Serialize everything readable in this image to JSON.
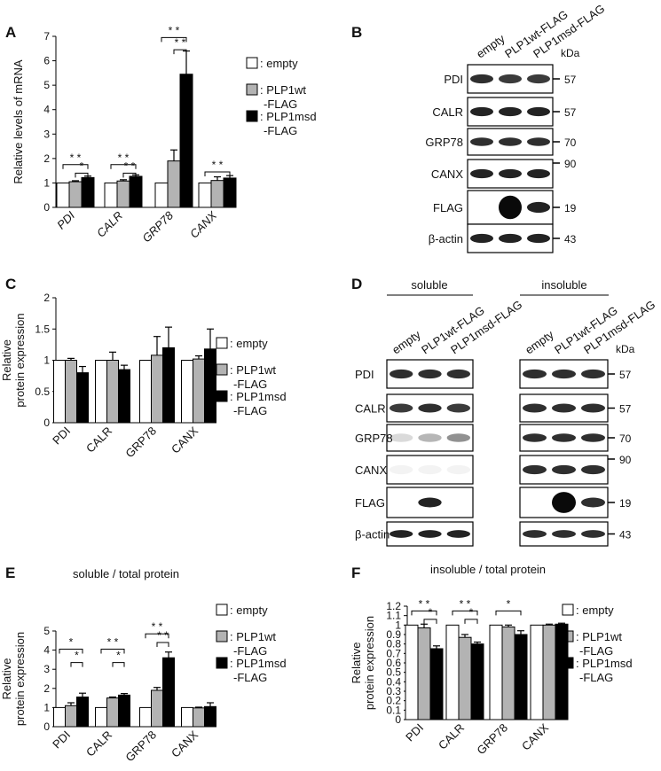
{
  "legend": {
    "empty": ": empty",
    "wt": [
      ": PLP1wt",
      "-FLAG"
    ],
    "msd": [
      ": PLP1msd",
      "-FLAG"
    ]
  },
  "colors": {
    "empty": "#ffffff",
    "wt": "#b3b3b3",
    "msd": "#000000"
  },
  "chart_data": [
    {
      "panel": "A",
      "type": "bar",
      "categories": [
        "PDI",
        "CALR",
        "GRP78",
        "CANX"
      ],
      "italic_categories": true,
      "ylabel": "Relative levels of mRNA",
      "ylim": [
        0,
        7
      ],
      "yticks": [
        "0",
        "1",
        "2",
        "3",
        "4",
        "5",
        "6",
        "7"
      ],
      "series": [
        {
          "name": "empty",
          "values": [
            1,
            1,
            1,
            1
          ],
          "err": [
            0,
            0,
            0,
            0
          ]
        },
        {
          "name": "PLP1wt-FLAG",
          "values": [
            1.05,
            1.08,
            1.9,
            1.1
          ],
          "err": [
            0.04,
            0.05,
            0.45,
            0.15
          ]
        },
        {
          "name": "PLP1msd-FLAG",
          "values": [
            1.22,
            1.27,
            5.45,
            1.2
          ],
          "err": [
            0.06,
            0.06,
            0.95,
            0.1
          ]
        }
      ],
      "significance": [
        {
          "from": 0,
          "to": 2,
          "y": 1.75,
          "label": "* *",
          "cat": 0
        },
        {
          "from": 1,
          "to": 2,
          "y": 1.4,
          "label": "*",
          "cat": 0
        },
        {
          "from": 0,
          "to": 2,
          "y": 1.75,
          "label": "* *",
          "cat": 1
        },
        {
          "from": 1,
          "to": 2,
          "y": 1.4,
          "label": "* *",
          "cat": 1
        },
        {
          "from": 0,
          "to": 2,
          "y": 6.95,
          "label": "* *",
          "cat": 2
        },
        {
          "from": 1,
          "to": 2,
          "y": 6.45,
          "label": "* *",
          "cat": 2
        },
        {
          "from": 0,
          "to": 2,
          "y": 1.45,
          "label": "* *",
          "cat": 3
        }
      ]
    },
    {
      "panel": "C",
      "type": "bar",
      "categories": [
        "PDI",
        "CALR",
        "GRP78",
        "CANX"
      ],
      "ylabel": [
        "Relative",
        "protein expression"
      ],
      "ylim": [
        0,
        2
      ],
      "yticks": [
        "0",
        "0.5",
        "1",
        "1.5",
        "2"
      ],
      "series": [
        {
          "name": "empty",
          "values": [
            1,
            1,
            1,
            1
          ],
          "err": [
            0,
            0,
            0,
            0
          ]
        },
        {
          "name": "PLP1wt-FLAG",
          "values": [
            1.0,
            1.0,
            1.08,
            1.02
          ],
          "err": [
            0.03,
            0.13,
            0.3,
            0.05
          ]
        },
        {
          "name": "PLP1msd-FLAG",
          "values": [
            0.8,
            0.85,
            1.2,
            1.18
          ],
          "err": [
            0.1,
            0.07,
            0.33,
            0.32
          ]
        }
      ],
      "significance": []
    },
    {
      "panel": "E",
      "type": "bar",
      "title": "soluble / total protein",
      "categories": [
        "PDI",
        "CALR",
        "GRP78",
        "CANX"
      ],
      "ylabel": [
        "Relative",
        "protein expression"
      ],
      "ylim": [
        0,
        5
      ],
      "yticks": [
        "0",
        "1",
        "2",
        "3",
        "4",
        "5"
      ],
      "series": [
        {
          "name": "empty",
          "values": [
            1,
            1,
            1,
            1
          ],
          "err": [
            0,
            0,
            0,
            0
          ]
        },
        {
          "name": "PLP1wt-FLAG",
          "values": [
            1.1,
            1.5,
            1.9,
            0.98
          ],
          "err": [
            0.15,
            0.05,
            0.15,
            0.04
          ]
        },
        {
          "name": "PLP1msd-FLAG",
          "values": [
            1.55,
            1.65,
            3.6,
            1.05
          ],
          "err": [
            0.2,
            0.08,
            0.3,
            0.2
          ]
        }
      ],
      "significance": [
        {
          "from": 0,
          "to": 2,
          "y": 4.05,
          "label": "*",
          "cat": 0
        },
        {
          "from": 1,
          "to": 2,
          "y": 3.35,
          "label": "*",
          "cat": 0
        },
        {
          "from": 0,
          "to": 2,
          "y": 4.05,
          "label": "* *",
          "cat": 1
        },
        {
          "from": 1,
          "to": 2,
          "y": 3.35,
          "label": "*",
          "cat": 1
        },
        {
          "from": 0,
          "to": 2,
          "y": 4.85,
          "label": "* *",
          "cat": 2
        },
        {
          "from": 1,
          "to": 2,
          "y": 4.4,
          "label": "* *",
          "cat": 2
        }
      ]
    },
    {
      "panel": "F",
      "type": "bar",
      "title": "insoluble / total protein",
      "categories": [
        "PDI",
        "CALR",
        "GRP78",
        "CANX"
      ],
      "ylabel": [
        "Relative",
        "protein expression"
      ],
      "ylim": [
        0,
        1.2
      ],
      "yticks": [
        "0",
        "0.1",
        "0.2",
        "0.3",
        "0.4",
        "0.5",
        "0.6",
        "0.7",
        "0.8",
        "0.9",
        "1",
        "1.1",
        "1.2"
      ],
      "series": [
        {
          "name": "empty",
          "values": [
            1,
            1,
            1,
            1
          ],
          "err": [
            0,
            0,
            0,
            0
          ]
        },
        {
          "name": "PLP1wt-FLAG",
          "values": [
            0.97,
            0.87,
            0.98,
            1.0
          ],
          "err": [
            0.04,
            0.03,
            0.02,
            0.01
          ]
        },
        {
          "name": "PLP1msd-FLAG",
          "values": [
            0.75,
            0.8,
            0.9,
            1.01
          ],
          "err": [
            0.03,
            0.02,
            0.04,
            0.01
          ]
        }
      ],
      "significance": [
        {
          "from": 0,
          "to": 2,
          "y": 1.15,
          "label": "* *",
          "cat": 0
        },
        {
          "from": 1,
          "to": 2,
          "y": 1.06,
          "label": "*",
          "cat": 0
        },
        {
          "from": 0,
          "to": 2,
          "y": 1.15,
          "label": "* *",
          "cat": 1
        },
        {
          "from": 1,
          "to": 2,
          "y": 1.06,
          "label": "*",
          "cat": 1
        },
        {
          "from": 0,
          "to": 2,
          "y": 1.15,
          "label": "*",
          "cat": 2
        }
      ]
    }
  ],
  "blots": {
    "B": {
      "lanes": [
        "empty",
        "PLP1wt-FLAG",
        "PLP1msd-FLAG"
      ],
      "kda_label": "kDa",
      "rows": [
        {
          "label": "PDI",
          "kda": "57",
          "bands": [
            0.85,
            0.8,
            0.8
          ]
        },
        {
          "label": "CALR",
          "kda": "57",
          "bands": [
            0.9,
            0.9,
            0.9
          ]
        },
        {
          "label": "GRP78",
          "kda": "70",
          "bands": [
            0.85,
            0.85,
            0.85
          ]
        },
        {
          "label": "CANX",
          "kda": "90",
          "bands": [
            0.9,
            0.9,
            0.9
          ]
        },
        {
          "label": "FLAG",
          "kda": "19",
          "bands": [
            0,
            1,
            0.9
          ]
        },
        {
          "label": "β-actin",
          "kda": "43",
          "bands": [
            0.9,
            0.9,
            0.9
          ]
        }
      ]
    },
    "D": {
      "soluble": "soluble",
      "insoluble": "insoluble",
      "lanes": [
        "empty",
        "PLP1wt-FLAG",
        "PLP1msd-FLAG"
      ],
      "rows": [
        {
          "label": "PDI",
          "kda": "57",
          "sol": [
            0.85,
            0.85,
            0.85
          ],
          "ins": [
            0.85,
            0.85,
            0.85
          ]
        },
        {
          "label": "CALR",
          "kda": "57",
          "sol": [
            0.8,
            0.85,
            0.8
          ],
          "ins": [
            0.85,
            0.85,
            0.85
          ]
        },
        {
          "label": "GRP78",
          "kda": "70",
          "sol": [
            0.15,
            0.3,
            0.45
          ],
          "ins": [
            0.85,
            0.85,
            0.85
          ]
        },
        {
          "label": "CANX",
          "kda": "90",
          "sol": [
            0.05,
            0.05,
            0.05
          ],
          "ins": [
            0.85,
            0.85,
            0.85
          ]
        },
        {
          "label": "FLAG",
          "kda": "19",
          "sol": [
            0,
            0.9,
            0
          ],
          "ins": [
            0,
            1,
            0.85
          ]
        },
        {
          "label": "β-actin",
          "kda": "43",
          "sol": [
            0.9,
            0.9,
            0.9
          ],
          "ins": [
            0.85,
            0.85,
            0.85
          ]
        }
      ]
    }
  },
  "panel_labels": [
    "A",
    "B",
    "C",
    "D",
    "E",
    "F"
  ]
}
